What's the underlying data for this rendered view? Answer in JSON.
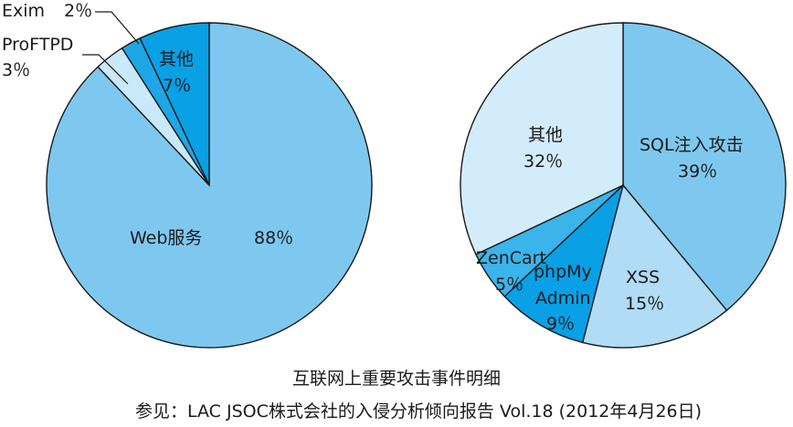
{
  "chart_data": [
    {
      "type": "pie",
      "slices": [
        {
          "label": "Web服务",
          "value": 88,
          "display": "88％",
          "color": "#7ec8f0"
        },
        {
          "label": "ProFTPD",
          "value": 3,
          "display": "3％",
          "color": "#c9e9fa"
        },
        {
          "label": "Exim",
          "value": 2,
          "display": "2％",
          "color": "#1ea6e6"
        },
        {
          "label": "其他",
          "value": 7,
          "display": "7％",
          "color": "#09a0e6"
        }
      ]
    },
    {
      "type": "pie",
      "slices": [
        {
          "label": "SQL注入攻击",
          "value": 39,
          "display": "39％",
          "color": "#7ec8f0"
        },
        {
          "label": "XSS",
          "value": 15,
          "display": "15％",
          "color": "#b0dcf5"
        },
        {
          "label": "phpMy Admin",
          "value": 9,
          "display": "9％",
          "color": "#09a0e6"
        },
        {
          "label": "ZenCart",
          "value": 5,
          "display": "5％",
          "color": "#3ab4ea"
        },
        {
          "label": "其他",
          "value": 32,
          "display": "32％",
          "color": "#d3ecfb"
        }
      ]
    }
  ],
  "caption": "互联网上重要攻击事件明细",
  "source": "参见：LAC JSOC株式会社的入侵分析倾向报告 Vol.18 (2012年4月26日)"
}
